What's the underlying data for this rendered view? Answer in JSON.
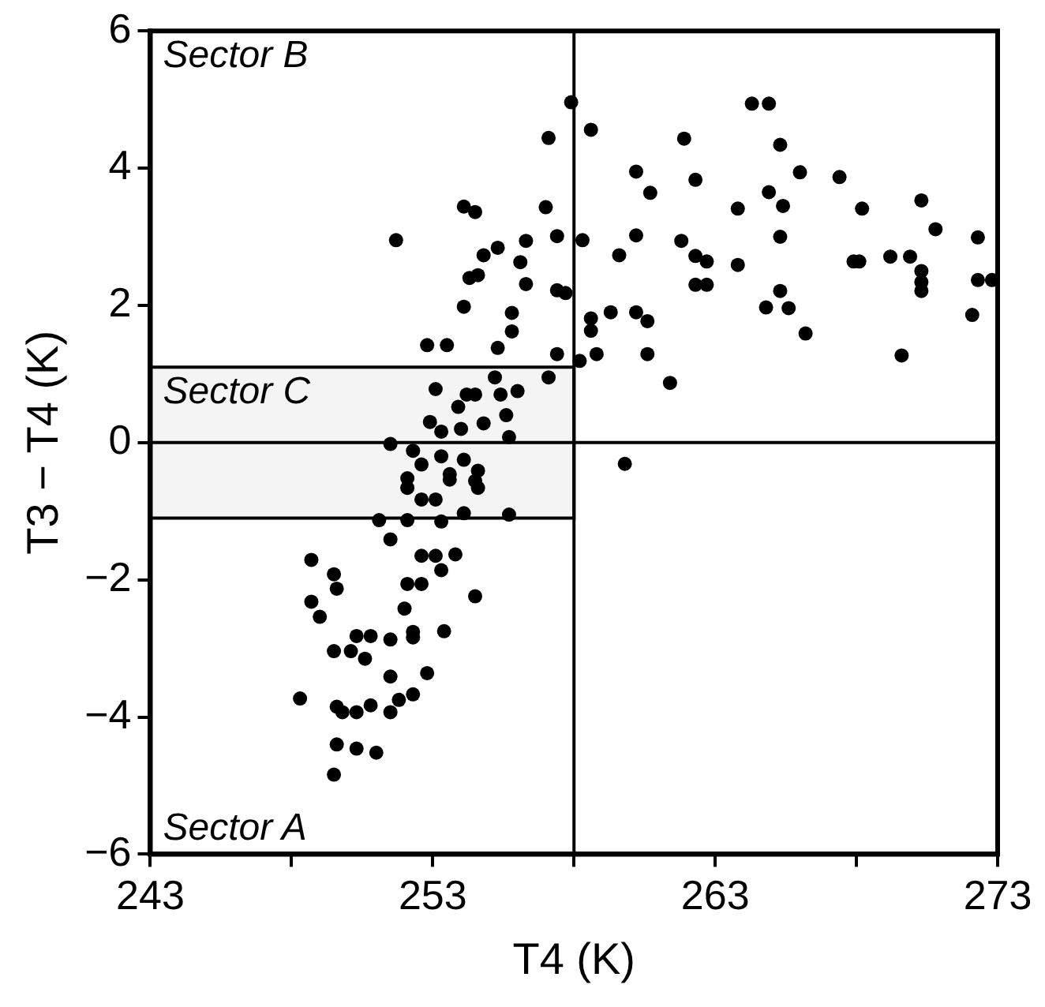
{
  "chart_data": {
    "type": "scatter",
    "xlabel": "T4 (K)",
    "ylabel": "T3 − T4 (K)",
    "xlim": [
      243,
      273
    ],
    "ylim": [
      -6,
      6
    ],
    "xticks": [
      243,
      {
        "value": 248,
        "label": null
      },
      253,
      {
        "value": 258,
        "label": null
      },
      263,
      {
        "value": 268,
        "label": null
      },
      273
    ],
    "yticks": [
      -6,
      -4,
      -2,
      0,
      2,
      4,
      6
    ],
    "grid": false,
    "marker": "circle",
    "ref_lines": [
      {
        "axis": "x",
        "value": 258,
        "label": null
      },
      {
        "axis": "y",
        "value": 0,
        "label": null
      }
    ],
    "bands": [
      {
        "axis": "y",
        "from": -1.1,
        "to": 1.1,
        "label": "Sector C",
        "color": "#f4f4f4"
      }
    ],
    "annotations": [
      "Sector B",
      "Sector A"
    ],
    "series": [
      {
        "color": "#000000",
        "x": [
          257.9,
          257.1,
          254.1,
          254.5,
          257.0,
          251.7,
          255.3,
          256.3,
          257.4,
          254.8,
          256.1,
          254.3,
          254.6,
          256.3,
          257.4,
          257.7,
          254.1,
          255.8,
          255.8,
          252.8,
          253.5,
          255.3,
          257.4,
          258.2,
          257.1,
          255.2,
          253.1,
          254.2,
          254.5,
          255.4,
          256.0,
          253.9,
          252.9,
          253.3,
          254.0,
          254.8,
          255.6,
          251.5,
          252.3,
          253.3,
          252.6,
          254.1,
          253.6,
          254.6,
          252.1,
          253.6,
          254.5,
          252.1,
          254.6,
          252.6,
          253.1,
          255.7,
          251.1,
          252.1,
          253.3,
          254.1,
          255.7,
          251.5,
          248.7,
          252.6,
          253.1,
          253.8,
          253.3,
          249.5,
          249.6,
          252.1,
          252.6,
          254.5,
          248.7,
          249.0,
          252.0,
          250.3,
          250.8,
          252.3,
          252.3,
          253.4,
          251.5,
          249.5,
          250.1,
          250.6,
          251.5,
          252.8,
          248.3,
          252.3,
          251.8,
          251.5,
          249.6,
          249.8,
          250.3,
          250.8,
          249.6,
          250.3,
          251.0,
          249.5,
          264.3,
          264.9,
          258.6,
          261.9,
          265.3,
          260.2,
          262.3,
          266.0,
          267.4,
          260.7,
          264.9,
          263.8,
          265.4,
          268.2,
          270.3,
          270.8,
          258.3,
          260.2,
          261.8,
          265.3,
          272.3,
          259.6,
          262.3,
          262.7,
          263.8,
          267.9,
          268.1,
          269.2,
          269.9,
          270.3,
          270.3,
          270.3,
          262.3,
          262.7,
          272.3,
          272.8,
          265.3,
          264.8,
          265.6,
          259.3,
          260.2,
          260.6,
          258.6,
          258.6,
          266.2,
          272.1,
          258.8,
          260.6,
          269.6,
          261.4,
          259.8
        ],
        "values": [
          4.96,
          4.44,
          3.44,
          3.36,
          3.43,
          2.95,
          2.84,
          2.94,
          3.01,
          2.73,
          2.63,
          2.4,
          2.44,
          2.31,
          2.22,
          2.18,
          1.98,
          1.89,
          1.62,
          1.42,
          1.42,
          1.38,
          1.29,
          1.19,
          0.95,
          0.95,
          0.78,
          0.7,
          0.7,
          0.7,
          0.75,
          0.52,
          0.3,
          0.16,
          0.2,
          0.28,
          0.4,
          -0.02,
          -0.12,
          -0.2,
          -0.32,
          -0.25,
          -0.46,
          -0.41,
          -0.52,
          -0.54,
          -0.56,
          -0.66,
          -0.66,
          -0.83,
          -0.83,
          0.08,
          -1.13,
          -1.13,
          -1.15,
          -1.03,
          -1.05,
          -1.41,
          -1.71,
          -1.65,
          -1.65,
          -1.63,
          -1.86,
          -1.92,
          -2.13,
          -2.06,
          -2.06,
          -2.24,
          -2.32,
          -2.54,
          -2.42,
          -2.82,
          -2.82,
          -2.76,
          -2.84,
          -2.75,
          -2.87,
          -3.04,
          -3.04,
          -3.15,
          -3.41,
          -3.36,
          -3.73,
          -3.67,
          -3.75,
          -3.93,
          -3.85,
          -3.93,
          -3.93,
          -3.83,
          -4.4,
          -4.46,
          -4.52,
          -4.84,
          4.94,
          4.94,
          4.56,
          4.43,
          4.34,
          3.95,
          3.83,
          3.94,
          3.87,
          3.64,
          3.65,
          3.41,
          3.45,
          3.41,
          3.53,
          3.11,
          2.95,
          3.02,
          2.94,
          3.0,
          2.99,
          2.73,
          2.72,
          2.64,
          2.59,
          2.64,
          2.64,
          2.71,
          2.71,
          2.5,
          2.34,
          2.21,
          2.3,
          2.3,
          2.37,
          2.37,
          2.21,
          1.97,
          1.96,
          1.9,
          1.9,
          1.77,
          1.81,
          1.63,
          1.59,
          1.86,
          1.29,
          1.29,
          1.27,
          0.87,
          -0.31
        ]
      }
    ]
  }
}
